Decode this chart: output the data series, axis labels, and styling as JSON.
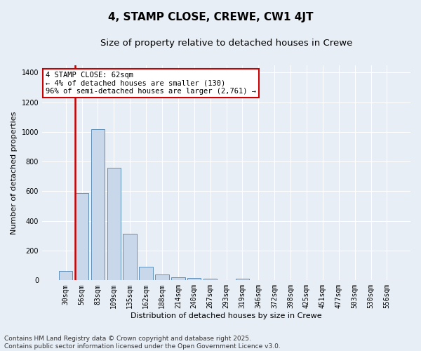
{
  "title": "4, STAMP CLOSE, CREWE, CW1 4JT",
  "subtitle": "Size of property relative to detached houses in Crewe",
  "xlabel": "Distribution of detached houses by size in Crewe",
  "ylabel": "Number of detached properties",
  "bar_color": "#c8d8ea",
  "bar_edge_color": "#6090b8",
  "highlight_color": "#cc0000",
  "background_color": "#e8eef6",
  "categories": [
    "30sqm",
    "56sqm",
    "83sqm",
    "109sqm",
    "135sqm",
    "162sqm",
    "188sqm",
    "214sqm",
    "240sqm",
    "267sqm",
    "293sqm",
    "319sqm",
    "346sqm",
    "372sqm",
    "398sqm",
    "425sqm",
    "451sqm",
    "477sqm",
    "503sqm",
    "530sqm",
    "556sqm"
  ],
  "values": [
    65,
    590,
    1020,
    760,
    315,
    90,
    38,
    22,
    15,
    10,
    0,
    12,
    0,
    0,
    0,
    0,
    0,
    0,
    0,
    0,
    0
  ],
  "highlight_bin_index": 1,
  "annotation_line1": "4 STAMP CLOSE: 62sqm",
  "annotation_line2": "← 4% of detached houses are smaller (130)",
  "annotation_line3": "96% of semi-detached houses are larger (2,761) →",
  "ylim": [
    0,
    1450
  ],
  "yticks": [
    0,
    200,
    400,
    600,
    800,
    1000,
    1200,
    1400
  ],
  "footnote": "Contains HM Land Registry data © Crown copyright and database right 2025.\nContains public sector information licensed under the Open Government Licence v3.0.",
  "title_fontsize": 11,
  "subtitle_fontsize": 9.5,
  "label_fontsize": 8,
  "tick_fontsize": 7,
  "annotation_fontsize": 7.5,
  "footnote_fontsize": 6.5
}
